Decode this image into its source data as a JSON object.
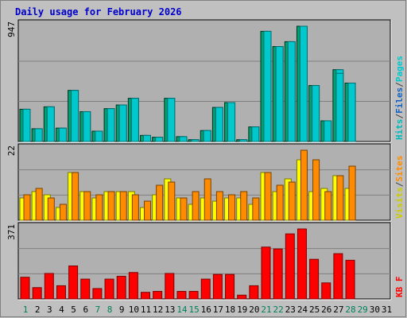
{
  "colors": {
    "frame_bg": "#c0c0c0",
    "panel_bg": "#b0b0b0",
    "border_dark": "#000000",
    "title": "#0000cc",
    "hits": "#00c8cc",
    "hits_edge": "#006f70",
    "files": "#00a070",
    "files_edge": "#003020",
    "pages": "#00a0c0",
    "sites": "#ff8c00",
    "sites_edge": "#7a4000",
    "visits": "#ffff00",
    "visits_edge": "#7a7a00",
    "kbytes": "#ff0000",
    "kbytes_edge": "#800000",
    "weekend_day": "#00805a",
    "weekday_day": "#000000",
    "axis_max_label": "#000000"
  },
  "chart_data": {
    "type": "bar",
    "title": "Daily usage for February 2026",
    "categories": [
      "1",
      "2",
      "3",
      "4",
      "5",
      "6",
      "7",
      "8",
      "9",
      "10",
      "11",
      "12",
      "13",
      "14",
      "15",
      "16",
      "17",
      "18",
      "19",
      "20",
      "21",
      "22",
      "23",
      "24",
      "25",
      "26",
      "27",
      "28",
      "29",
      "30",
      "31"
    ],
    "weekend_days": [
      "1",
      "7",
      "8",
      "14",
      "15",
      "21",
      "22",
      "28",
      "29"
    ],
    "data_days": 28,
    "panels": [
      {
        "name": "top",
        "max_label": "947",
        "ymax": 947,
        "legend": [
          {
            "text": "Hits",
            "color": "#00b8b8"
          },
          {
            "text": "/",
            "color": "#404040"
          },
          {
            "text": "Files",
            "color": "#1060c0"
          },
          {
            "text": "/",
            "color": "#404040"
          },
          {
            "text": "Pages",
            "color": "#00c8cc"
          }
        ],
        "series": [
          {
            "name": "Files",
            "values": [
              265,
              105,
              285,
              110,
              420,
              245,
              85,
              270,
              300,
              355,
              50,
              35,
              355,
              40,
              15,
              90,
              280,
              320,
              15,
              120,
              905,
              780,
              820,
              947,
              460,
              170,
              590,
              480
            ]
          },
          {
            "name": "Hits",
            "values": [
              265,
              105,
              285,
              110,
              420,
              245,
              85,
              270,
              300,
              355,
              50,
              35,
              355,
              40,
              15,
              90,
              280,
              320,
              15,
              120,
              905,
              780,
              820,
              947,
              460,
              170,
              590,
              480
            ]
          },
          {
            "name": "Pages",
            "values": [
              265,
              105,
              285,
              110,
              420,
              245,
              85,
              270,
              300,
              355,
              50,
              35,
              355,
              40,
              15,
              90,
              280,
              320,
              15,
              120,
              905,
              780,
              820,
              947,
              460,
              170,
              560,
              480
            ]
          }
        ]
      },
      {
        "name": "middle",
        "max_label": "22",
        "ymax": 22,
        "legend": [
          {
            "text": "Visits",
            "color": "#cccc00"
          },
          {
            "text": "/",
            "color": "#404040"
          },
          {
            "text": "Sites",
            "color": "#ff8c00"
          }
        ],
        "series": [
          {
            "name": "Visits",
            "values": [
              7,
              9,
              8,
              4,
              15,
              9,
              7,
              9,
              9,
              9,
              4,
              8,
              13,
              7,
              5,
              7,
              6,
              7,
              7,
              5,
              15,
              9,
              13,
              19,
              9,
              10,
              14,
              10
            ]
          },
          {
            "name": "Sites",
            "values": [
              8,
              10,
              7,
              5,
              15,
              9,
              8,
              9,
              9,
              8,
              6,
              11,
              12,
              7,
              9,
              13,
              9,
              8,
              9,
              7,
              15,
              11,
              12,
              22,
              19,
              9,
              14,
              17
            ]
          }
        ]
      },
      {
        "name": "bottom",
        "max_label": "371",
        "ymax": 371,
        "legend": [
          {
            "text": "KB F",
            "color": "#ff0000"
          }
        ],
        "series": [
          {
            "name": "KB F",
            "values": [
              115,
              60,
              135,
              70,
              175,
              105,
              55,
              105,
              120,
              140,
              35,
              40,
              135,
              40,
              40,
              105,
              130,
              130,
              20,
              70,
              275,
              265,
              345,
              371,
              210,
              85,
              240,
              205
            ]
          }
        ]
      }
    ]
  }
}
